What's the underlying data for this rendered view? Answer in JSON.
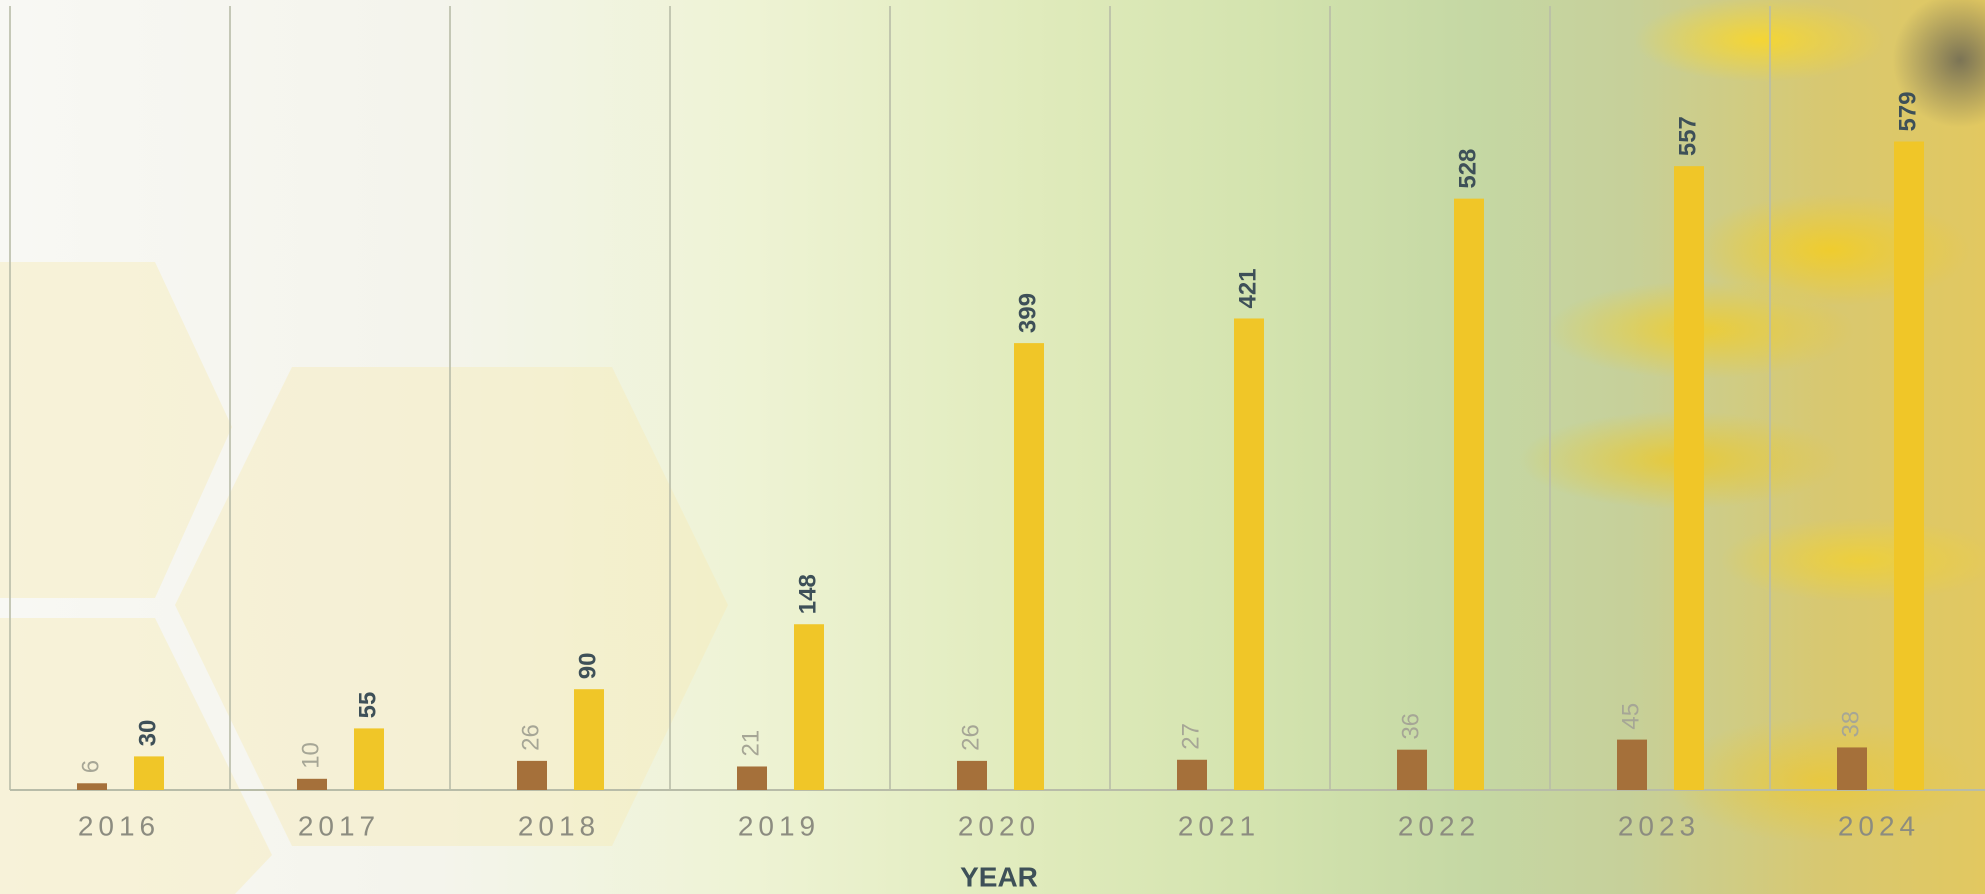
{
  "chart_data": {
    "type": "bar",
    "x_label": "YEAR",
    "categories": [
      "2016",
      "2017",
      "2018",
      "2019",
      "2020",
      "2021",
      "2022",
      "2023",
      "2024"
    ],
    "series": [
      {
        "color": "#a5703a",
        "values": [
          6,
          10,
          26,
          21,
          26,
          27,
          36,
          45,
          38
        ]
      },
      {
        "color": "#f0c628",
        "values": [
          30,
          55,
          90,
          148,
          399,
          421,
          528,
          557,
          579
        ]
      }
    ],
    "ylim": [
      0,
      700
    ],
    "grid": true
  }
}
